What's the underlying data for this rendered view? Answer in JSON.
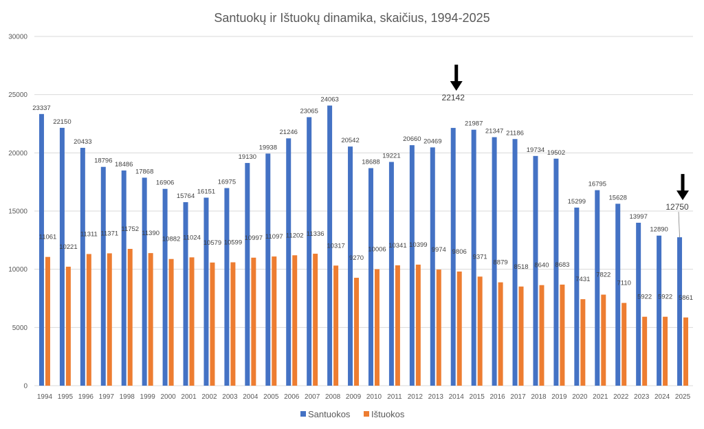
{
  "chart_data": {
    "type": "bar",
    "title": "Santuokų ir Ištuokų dinamika, skaičius, 1994-2025",
    "xlabel": "",
    "ylabel": "",
    "ylim": [
      0,
      30000
    ],
    "yticks": [
      0,
      5000,
      10000,
      15000,
      20000,
      25000,
      30000
    ],
    "grid": true,
    "legend_position": "bottom",
    "categories": [
      "1994",
      "1995",
      "1996",
      "1997",
      "1998",
      "1999",
      "2000",
      "2001",
      "2002",
      "2003",
      "2004",
      "2005",
      "2006",
      "2007",
      "2008",
      "2009",
      "2010",
      "2011",
      "2012",
      "2013",
      "2014",
      "2015",
      "2016",
      "2017",
      "2018",
      "2019",
      "2020",
      "2021",
      "2022",
      "2023",
      "2024",
      "2025"
    ],
    "series": [
      {
        "name": "Santuokos",
        "color": "#4472c4",
        "values": [
          23337,
          22150,
          20433,
          18796,
          18486,
          17868,
          16906,
          15764,
          16151,
          16975,
          19130,
          19938,
          21246,
          23065,
          24063,
          20542,
          18688,
          19221,
          20660,
          20469,
          22142,
          21987,
          21347,
          21186,
          19734,
          19502,
          15299,
          16795,
          15628,
          13997,
          12890,
          12750
        ]
      },
      {
        "name": "Ištuokos",
        "color": "#ed7d31",
        "values": [
          11061,
          10221,
          11311,
          11371,
          11752,
          11390,
          10882,
          11024,
          10579,
          10599,
          10997,
          11097,
          11202,
          11336,
          10317,
          9270,
          10006,
          10341,
          10399,
          9974,
          9806,
          9371,
          8879,
          8518,
          8640,
          8683,
          7431,
          7822,
          7110,
          5922,
          5922,
          5861
        ]
      }
    ],
    "highlight_color": "#2e75b6",
    "highlighted": [
      {
        "category": "2014",
        "value": 22142
      },
      {
        "category": "2025",
        "value": 12750
      }
    ],
    "annotations": [
      {
        "type": "arrow-down",
        "category": "2014"
      },
      {
        "type": "arrow-down",
        "category": "2025"
      }
    ]
  }
}
